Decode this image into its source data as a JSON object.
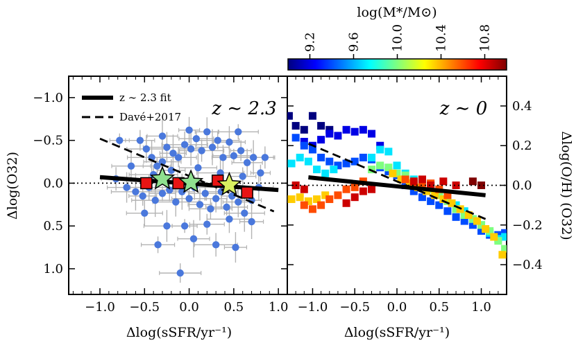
{
  "chart_data": {
    "type": "scatter",
    "colorbar": {
      "title": "log(M*/M⊙)",
      "range": [
        9.0,
        11.0
      ],
      "ticks": [
        "9.2",
        "9.6",
        "10.0",
        "10.4",
        "10.8"
      ],
      "tick_values": [
        9.2,
        9.6,
        10.0,
        10.4,
        10.8
      ],
      "colors": [
        "#00007f",
        "#0000ff",
        "#007fff",
        "#00ffff",
        "#7fff7f",
        "#ffff00",
        "#ff7f00",
        "#ff0000",
        "#7f0000"
      ]
    },
    "panels": [
      {
        "id": "left",
        "tag": "z ∼ 2.3",
        "xlabel": "Δlog(sSFR/yr⁻¹)",
        "ylabel": "Δlog(O32)",
        "xlim": [
          -1.35,
          1.1
        ],
        "ylim": [
          1.3,
          -1.25
        ],
        "y_inverted": true,
        "xticks": [
          -1.0,
          -0.5,
          0.0,
          0.5,
          1.0
        ],
        "xtick_labels": [
          "−1.0",
          "−0.5",
          "0.0",
          "0.5",
          "1.0"
        ],
        "yticks": [
          -1.0,
          -0.5,
          0.0,
          0.5,
          1.0
        ],
        "ytick_labels": [
          "−1.0",
          "−0.5",
          "0.0",
          "0.5",
          "1.0"
        ],
        "zero_line": 0.0,
        "legend": [
          {
            "label": "z ∼ 2.3 fit",
            "style": "solid"
          },
          {
            "label": "Davé+2017",
            "style": "dashed"
          }
        ],
        "fit_line": {
          "x": [
            -1.0,
            1.0
          ],
          "y": [
            -0.07,
            0.08
          ]
        },
        "dave_line": {
          "x": [
            -1.0,
            0.95
          ],
          "y": [
            -0.52,
            0.33
          ]
        },
        "points": [
          {
            "x": -0.78,
            "y": -0.5
          },
          {
            "x": -0.55,
            "y": -0.5
          },
          {
            "x": -0.48,
            "y": -0.4
          },
          {
            "x": -0.42,
            "y": -0.3
          },
          {
            "x": -0.36,
            "y": -0.2
          },
          {
            "x": -0.3,
            "y": -0.25
          },
          {
            "x": -0.25,
            "y": -0.42
          },
          {
            "x": -0.18,
            "y": -0.35
          },
          {
            "x": -0.12,
            "y": -0.3
          },
          {
            "x": -0.05,
            "y": -0.45
          },
          {
            "x": 0.02,
            "y": -0.4
          },
          {
            "x": 0.08,
            "y": -0.52
          },
          {
            "x": 0.14,
            "y": -0.38
          },
          {
            "x": 0.2,
            "y": -0.6
          },
          {
            "x": 0.26,
            "y": -0.42
          },
          {
            "x": 0.32,
            "y": -0.5
          },
          {
            "x": 0.38,
            "y": -0.3
          },
          {
            "x": 0.45,
            "y": -0.48
          },
          {
            "x": 0.5,
            "y": -0.32
          },
          {
            "x": 0.58,
            "y": -0.38
          },
          {
            "x": 0.65,
            "y": -0.24
          },
          {
            "x": 0.72,
            "y": -0.3
          },
          {
            "x": 0.8,
            "y": -0.12
          },
          {
            "x": -0.82,
            "y": -0.05
          },
          {
            "x": -0.7,
            "y": 0.05
          },
          {
            "x": -0.6,
            "y": 0.1
          },
          {
            "x": -0.52,
            "y": 0.15
          },
          {
            "x": -0.45,
            "y": 0.05
          },
          {
            "x": -0.38,
            "y": 0.2
          },
          {
            "x": -0.3,
            "y": 0.12
          },
          {
            "x": -0.22,
            "y": 0.08
          },
          {
            "x": -0.15,
            "y": 0.22
          },
          {
            "x": -0.08,
            "y": 0.1
          },
          {
            "x": 0.0,
            "y": 0.18
          },
          {
            "x": 0.06,
            "y": 0.05
          },
          {
            "x": 0.12,
            "y": 0.25
          },
          {
            "x": 0.18,
            "y": 0.12
          },
          {
            "x": 0.24,
            "y": 0.3
          },
          {
            "x": 0.3,
            "y": 0.18
          },
          {
            "x": 0.36,
            "y": 0.1
          },
          {
            "x": 0.42,
            "y": 0.28
          },
          {
            "x": 0.48,
            "y": 0.15
          },
          {
            "x": 0.55,
            "y": 0.22
          },
          {
            "x": 0.62,
            "y": 0.35
          },
          {
            "x": 0.7,
            "y": 0.2
          },
          {
            "x": 0.78,
            "y": 0.05
          },
          {
            "x": -0.65,
            "y": -0.2
          },
          {
            "x": -0.4,
            "y": -0.1
          },
          {
            "x": -0.2,
            "y": -0.15
          },
          {
            "x": 0.1,
            "y": -0.18
          },
          {
            "x": 0.35,
            "y": -0.12
          },
          {
            "x": 0.6,
            "y": -0.08
          },
          {
            "x": -0.5,
            "y": 0.35
          },
          {
            "x": -0.25,
            "y": 0.5
          },
          {
            "x": -0.05,
            "y": 0.5
          },
          {
            "x": 0.2,
            "y": 0.48
          },
          {
            "x": 0.45,
            "y": 0.42
          },
          {
            "x": 0.7,
            "y": 0.45
          },
          {
            "x": -0.35,
            "y": 0.72
          },
          {
            "x": 0.3,
            "y": 0.72
          },
          {
            "x": 0.52,
            "y": 0.75
          },
          {
            "x": 0.05,
            "y": 0.65
          },
          {
            "x": -0.1,
            "y": 1.05
          },
          {
            "x": 0.0,
            "y": -0.62
          },
          {
            "x": -0.3,
            "y": -0.55
          },
          {
            "x": 0.55,
            "y": -0.6
          },
          {
            "x": 0.85,
            "y": -0.3
          }
        ],
        "binned_squares": [
          {
            "x": -0.48,
            "y": 0.0
          },
          {
            "x": -0.12,
            "y": 0.0
          },
          {
            "x": 0.32,
            "y": -0.03
          },
          {
            "x": 0.65,
            "y": 0.11
          }
        ],
        "binned_stars": [
          {
            "x": -0.3,
            "y": -0.05,
            "color": "#8fe08f"
          },
          {
            "x": 0.02,
            "y": -0.01,
            "color": "#8fe08f"
          },
          {
            "x": 0.45,
            "y": 0.02,
            "color": "#d8f060"
          }
        ]
      },
      {
        "id": "right",
        "tag": "z ∼ 0",
        "xlabel": "Δlog(sSFR/yr⁻¹)",
        "ylabel": "Δlog(O/H) (O32)",
        "xlim": [
          -1.3,
          1.3
        ],
        "ylim": [
          -0.55,
          0.55
        ],
        "y_inverted": false,
        "xticks": [
          -1.0,
          -0.5,
          0.0,
          0.5,
          1.0
        ],
        "xtick_labels": [
          "−1.0",
          "−0.5",
          "0.0",
          "0.5",
          "1.0"
        ],
        "yticks": [
          -0.4,
          -0.2,
          0.0,
          0.2,
          0.4
        ],
        "ytick_labels": [
          "−0.4",
          "−0.2",
          "0.0",
          "0.2",
          "0.4"
        ],
        "zero_line": 0.0,
        "fit_line": {
          "x": [
            -1.05,
            1.05
          ],
          "y": [
            0.04,
            -0.05
          ]
        },
        "dave_line": {
          "x": [
            -1.05,
            1.05
          ],
          "y": [
            0.21,
            -0.17
          ]
        },
        "tracks": [
          {
            "mass": 9.0,
            "points": [
              [
                -1.28,
                0.35
              ],
              [
                -1.2,
                0.3
              ],
              [
                -1.1,
                0.28
              ],
              [
                -1.0,
                0.35
              ],
              [
                -0.9,
                0.3
              ],
              [
                -0.8,
                0.28
              ]
            ]
          },
          {
            "mass": 9.2,
            "points": [
              [
                -1.1,
                0.22
              ],
              [
                -1.0,
                0.2
              ],
              [
                -0.9,
                0.23
              ],
              [
                -0.8,
                0.26
              ],
              [
                -0.7,
                0.25
              ],
              [
                -0.6,
                0.28
              ],
              [
                -0.5,
                0.27
              ],
              [
                -0.4,
                0.28
              ],
              [
                -0.3,
                0.26
              ],
              [
                -0.2,
                0.2
              ]
            ]
          },
          {
            "mass": 9.4,
            "points": [
              [
                -1.2,
                0.24
              ],
              [
                -1.1,
                0.2
              ],
              [
                -1.0,
                0.18
              ],
              [
                -0.9,
                0.14
              ],
              [
                -0.8,
                0.12
              ],
              [
                -0.7,
                0.1
              ],
              [
                -0.6,
                0.11
              ],
              [
                -0.5,
                0.12
              ],
              [
                -0.4,
                0.14
              ],
              [
                -0.3,
                0.13
              ],
              [
                -0.2,
                0.09
              ],
              [
                -0.1,
                0.07
              ],
              [
                0.0,
                0.05
              ],
              [
                0.1,
                0.0
              ],
              [
                0.2,
                -0.03
              ],
              [
                0.3,
                -0.06
              ],
              [
                0.4,
                -0.08
              ],
              [
                0.5,
                -0.1
              ],
              [
                0.6,
                -0.13
              ],
              [
                0.7,
                -0.16
              ],
              [
                0.8,
                -0.18
              ],
              [
                0.9,
                -0.2
              ],
              [
                1.0,
                -0.23
              ],
              [
                1.1,
                -0.25
              ],
              [
                1.2,
                -0.25
              ],
              [
                1.28,
                -0.24
              ]
            ]
          },
          {
            "mass": 9.7,
            "points": [
              [
                -1.25,
                0.11
              ],
              [
                -1.15,
                0.14
              ],
              [
                -1.05,
                0.12
              ],
              [
                -0.95,
                0.08
              ],
              [
                -0.85,
                0.06
              ],
              [
                -0.75,
                0.08
              ],
              [
                -0.3,
                0.14
              ],
              [
                -0.2,
                0.18
              ],
              [
                -0.1,
                0.17
              ],
              [
                0.0,
                0.1
              ],
              [
                0.1,
                0.06
              ],
              [
                0.2,
                0.03
              ],
              [
                0.3,
                0.02
              ],
              [
                0.4,
                -0.01
              ],
              [
                0.5,
                -0.03
              ],
              [
                0.6,
                -0.06
              ],
              [
                0.7,
                -0.1
              ],
              [
                0.8,
                -0.13
              ],
              [
                0.9,
                -0.17
              ],
              [
                1.0,
                -0.2
              ],
              [
                1.1,
                -0.24
              ],
              [
                1.2,
                -0.27
              ],
              [
                1.28,
                -0.26
              ]
            ]
          },
          {
            "mass": 10.0,
            "points": [
              [
                -0.3,
                0.08
              ],
              [
                -0.2,
                0.1
              ],
              [
                -0.1,
                0.09
              ],
              [
                0.0,
                0.06
              ],
              [
                0.1,
                0.05
              ],
              [
                0.2,
                0.02
              ],
              [
                0.3,
                0.0
              ],
              [
                0.4,
                -0.02
              ],
              [
                0.5,
                -0.05
              ],
              [
                0.6,
                -0.08
              ],
              [
                0.7,
                -0.12
              ],
              [
                0.8,
                -0.15
              ],
              [
                0.9,
                -0.17
              ],
              [
                1.0,
                -0.2
              ],
              [
                1.1,
                -0.23
              ],
              [
                1.2,
                -0.28
              ],
              [
                1.28,
                -0.32
              ]
            ]
          },
          {
            "mass": 10.35,
            "points": [
              [
                -1.25,
                -0.07
              ],
              [
                -1.15,
                -0.06
              ],
              [
                -1.05,
                -0.08
              ],
              [
                -0.95,
                -0.07
              ],
              [
                -0.85,
                -0.05
              ],
              [
                -0.05,
                0.06
              ],
              [
                0.05,
                0.03
              ],
              [
                0.15,
                0.01
              ],
              [
                0.25,
                -0.01
              ],
              [
                0.35,
                -0.03
              ],
              [
                0.45,
                -0.05
              ],
              [
                0.55,
                -0.07
              ],
              [
                0.65,
                -0.09
              ],
              [
                0.75,
                -0.12
              ],
              [
                0.85,
                -0.15
              ],
              [
                0.95,
                -0.18
              ],
              [
                1.05,
                -0.22
              ],
              [
                1.15,
                -0.26
              ],
              [
                1.25,
                -0.35
              ]
            ]
          },
          {
            "mass": 10.6,
            "points": [
              [
                -1.1,
                -0.1
              ],
              [
                -1.0,
                -0.12
              ],
              [
                -0.9,
                -0.1
              ],
              [
                -0.8,
                -0.07
              ],
              [
                -0.7,
                -0.05
              ],
              [
                -0.6,
                -0.02
              ],
              [
                -0.5,
                -0.01
              ],
              [
                -0.4,
                0.02
              ],
              [
                0.1,
                0.03
              ],
              [
                0.2,
                0.01
              ],
              [
                0.3,
                0.0
              ],
              [
                0.4,
                0.01
              ],
              [
                0.5,
                -0.02
              ],
              [
                0.6,
                -0.05
              ]
            ]
          },
          {
            "mass": 10.85,
            "points": [
              [
                -1.2,
                0.0
              ],
              [
                -1.1,
                -0.02
              ],
              [
                -0.6,
                -0.09
              ],
              [
                -0.5,
                -0.06
              ],
              [
                -0.4,
                -0.03
              ],
              [
                -0.3,
                -0.02
              ],
              [
                0.2,
                0.02
              ],
              [
                0.3,
                0.03
              ],
              [
                0.4,
                0.0
              ],
              [
                0.55,
                0.02
              ],
              [
                0.7,
                0.0
              ]
            ]
          },
          {
            "mass": 11.0,
            "points": [
              [
                0.9,
                0.02
              ],
              [
                1.0,
                0.0
              ]
            ]
          }
        ]
      }
    ]
  }
}
